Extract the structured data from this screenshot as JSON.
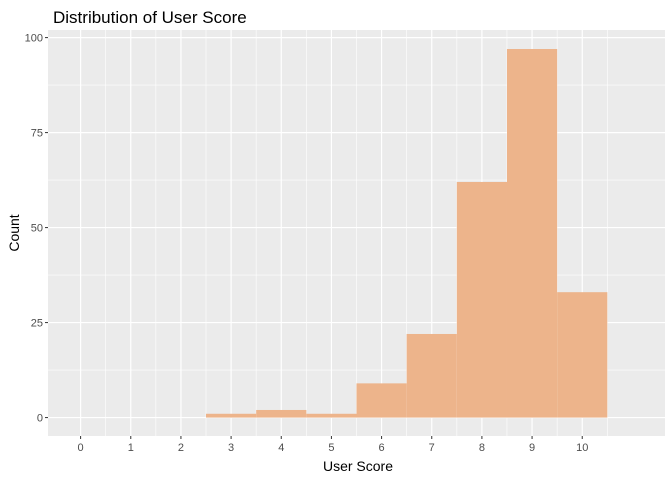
{
  "chart_data": {
    "type": "bar",
    "title": "Distribution of User Score",
    "xlabel": "User Score",
    "ylabel": "Count",
    "x_ticks": [
      0,
      1,
      2,
      3,
      4,
      5,
      6,
      7,
      8,
      9,
      10
    ],
    "y_ticks": [
      0,
      25,
      50,
      75,
      100
    ],
    "xlim": [
      -0.65,
      11.65
    ],
    "ylim": [
      -4.85,
      102
    ],
    "bin_width": 1,
    "bins": [
      {
        "x": 3,
        "count": 1
      },
      {
        "x": 4,
        "count": 2
      },
      {
        "x": 5,
        "count": 1
      },
      {
        "x": 6,
        "count": 9
      },
      {
        "x": 7,
        "count": 22
      },
      {
        "x": 8,
        "count": 62
      },
      {
        "x": 9,
        "count": 97
      },
      {
        "x": 10,
        "count": 33
      }
    ],
    "colors": {
      "panel_background": "#ebebeb",
      "grid_major": "#ffffff",
      "bar_fill": "#edb48b"
    },
    "grid": true,
    "legend": "none"
  }
}
